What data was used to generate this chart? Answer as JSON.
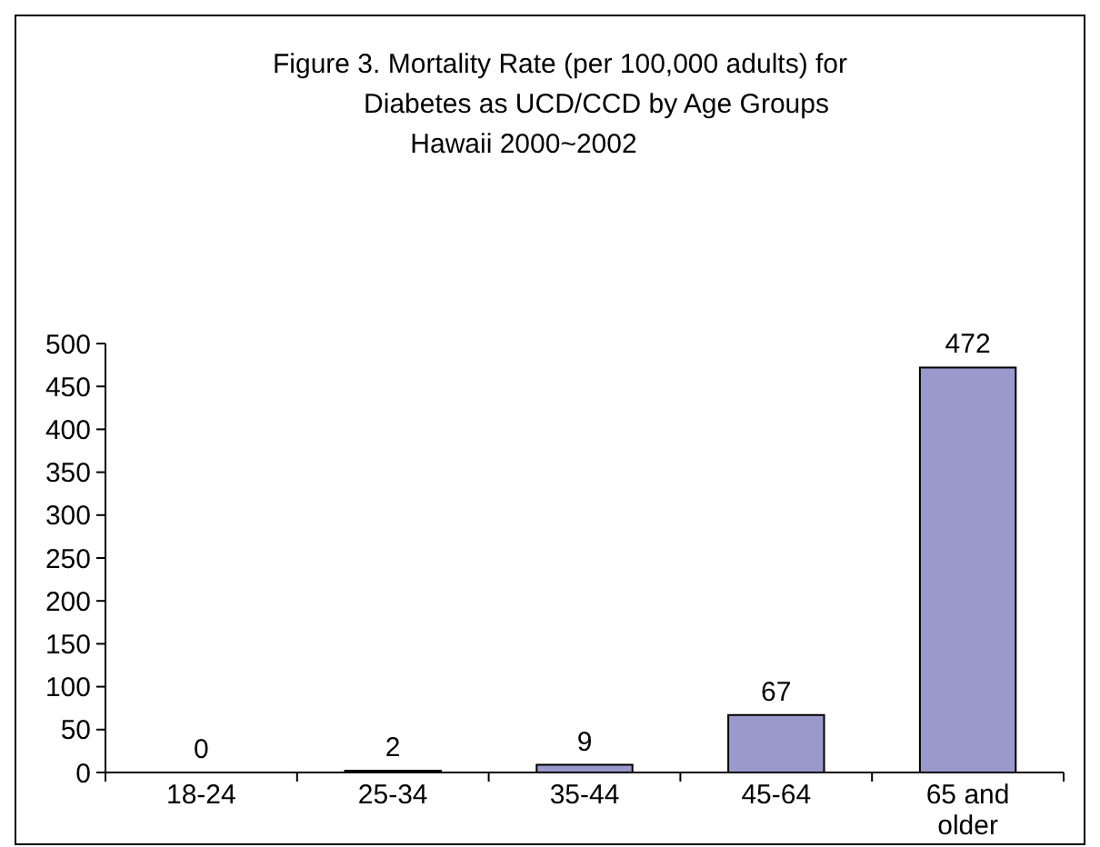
{
  "chart_data": {
    "type": "bar",
    "title": "Figure 3.  Mortality Rate (per 100,000 adults) for\nDiabetes as UCD/CCD by Age Groups",
    "subtitle": "Hawaii 2000~2002",
    "categories": [
      "18-24",
      "25-34",
      "35-44",
      "45-64",
      "65 and older"
    ],
    "values": [
      0,
      2,
      9,
      67,
      472
    ],
    "color": "#9999cc",
    "ylim": [
      0,
      500
    ],
    "yticks": [
      0,
      50,
      100,
      150,
      200,
      250,
      300,
      350,
      400,
      450,
      500
    ],
    "data_labels": true,
    "grid": false
  }
}
